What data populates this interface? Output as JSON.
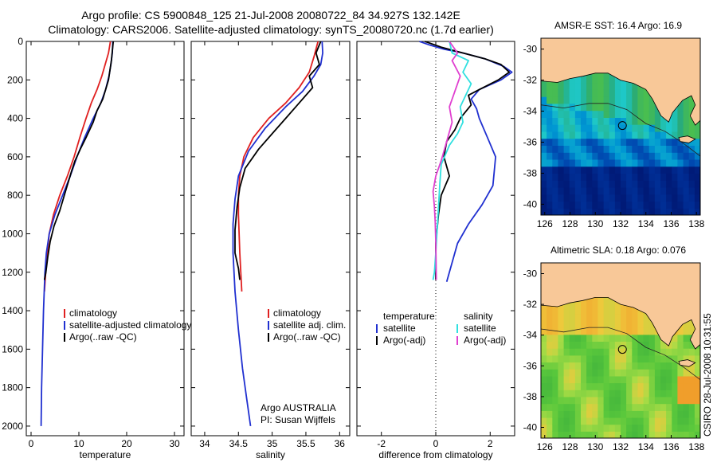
{
  "header": {
    "title_line1": "Argo profile: CS 5900848_125 21-Jul-2008 20080722_84 34.927S 132.142E",
    "title_line2": "Climatology: CARS2006. Satellite-adjusted climatology: synTS_20080720.nc (1.7d earlier)"
  },
  "credit": "CSIRO 28-Jul-2008 10:31:55",
  "colors": {
    "climatology": "#e02020",
    "satellite": "#2030d0",
    "argo": "#000000",
    "salinity_satellite": "#30e0e0",
    "salinity_argo": "#e040d0"
  },
  "chart_data": [
    {
      "id": "temperature",
      "type": "line",
      "xlabel": "temperature",
      "xlim": [
        -1,
        32
      ],
      "ylim": [
        2050,
        0
      ],
      "xticks": [
        0,
        10,
        20,
        30
      ],
      "yticks": [
        0,
        200,
        400,
        600,
        800,
        1000,
        1200,
        1400,
        1600,
        1800,
        2000
      ],
      "legend": [
        "climatology",
        "satellite-adjusted climatology",
        "Argo(..raw -QC)"
      ],
      "series": [
        {
          "name": "climatology",
          "color": "climatology",
          "x": [
            16.6,
            16.2,
            15.5,
            14.8,
            13.8,
            12.6,
            11.5,
            10.2,
            9.0,
            7.6,
            6.0,
            4.7,
            3.8,
            3.2,
            2.8
          ],
          "y": [
            0,
            60,
            120,
            180,
            250,
            320,
            400,
            500,
            600,
            700,
            800,
            900,
            1000,
            1150,
            1300
          ]
        },
        {
          "name": "satellite-adjusted climatology",
          "color": "satellite",
          "x": [
            17.1,
            17.0,
            16.7,
            16.3,
            15.6,
            14.6,
            13.0,
            11.2,
            9.6,
            8.2,
            6.6,
            5.0,
            3.8,
            3.2,
            2.9,
            2.6,
            2.4,
            2.2,
            2.1
          ],
          "y": [
            0,
            60,
            120,
            180,
            250,
            320,
            400,
            500,
            600,
            700,
            800,
            900,
            1000,
            1100,
            1200,
            1400,
            1600,
            1800,
            2000
          ]
        },
        {
          "name": "Argo(..raw -QC)",
          "color": "argo",
          "x": [
            17.2,
            17.0,
            16.8,
            16.5,
            16.2,
            15.6,
            15.0,
            13.8,
            13.0,
            11.5,
            10.3,
            9.2,
            8.4,
            7.2,
            6.0,
            4.8,
            4.0,
            3.5,
            3.1,
            2.8
          ],
          "y": [
            0,
            50,
            100,
            150,
            200,
            250,
            300,
            360,
            420,
            500,
            560,
            620,
            680,
            780,
            880,
            960,
            1040,
            1120,
            1200,
            1240
          ]
        }
      ]
    },
    {
      "id": "salinity",
      "type": "line",
      "xlabel": "salinity",
      "xlim": [
        33.8,
        36.15
      ],
      "ylim": [
        2050,
        0
      ],
      "xticks": [
        34,
        34.5,
        35,
        35.5,
        36
      ],
      "yticks": [],
      "legend": [
        "climatology",
        "satellite adj. clim.",
        "Argo(..raw -QC)"
      ],
      "annotation": [
        "Argo AUSTRALIA",
        "PI: Susan Wijffels"
      ],
      "series": [
        {
          "name": "climatology",
          "color": "climatology",
          "x": [
            35.68,
            35.62,
            35.55,
            35.4,
            35.2,
            34.95,
            34.72,
            34.58,
            34.52,
            34.5,
            34.5,
            34.52,
            34.55
          ],
          "y": [
            0,
            80,
            160,
            240,
            320,
            400,
            500,
            600,
            700,
            800,
            900,
            1100,
            1300
          ]
        },
        {
          "name": "satellite adj. clim.",
          "color": "satellite",
          "x": [
            35.74,
            35.75,
            35.72,
            35.62,
            35.45,
            35.2,
            34.9,
            34.65,
            34.5,
            34.45,
            34.42,
            34.42,
            34.45,
            34.5,
            34.56,
            34.62,
            34.68
          ],
          "y": [
            0,
            60,
            120,
            180,
            260,
            340,
            450,
            570,
            700,
            820,
            950,
            1100,
            1300,
            1500,
            1700,
            1850,
            2000
          ]
        },
        {
          "name": "Argo(..raw -QC)",
          "color": "argo",
          "x": [
            35.72,
            35.65,
            35.7,
            35.55,
            35.6,
            35.4,
            35.2,
            35.0,
            34.8,
            34.6,
            34.52,
            34.48,
            34.45,
            34.45,
            34.5,
            34.52
          ],
          "y": [
            0,
            60,
            120,
            180,
            240,
            320,
            400,
            480,
            560,
            660,
            760,
            860,
            980,
            1100,
            1180,
            1240
          ]
        }
      ]
    },
    {
      "id": "difference",
      "type": "line",
      "xlabel": "difference from climatology",
      "xlim": [
        -2.9,
        2.9
      ],
      "ylim": [
        2050,
        0
      ],
      "xticks": [
        -2,
        0,
        2
      ],
      "yticks": [],
      "legend": [
        "temperature",
        "satellite",
        "Argo(-adj)",
        "salinity",
        "satellite",
        "Argo(-adj)"
      ],
      "series": [
        {
          "name": "temperature satellite",
          "color": "satellite",
          "x": [
            -0.6,
            -0.2,
            0.3,
            1.0,
            1.8,
            2.5,
            2.8,
            2.4,
            1.6,
            1.3,
            1.5,
            1.6,
            1.9,
            2.2,
            2.1,
            1.7,
            1.2,
            0.8,
            0.4
          ],
          "y": [
            0,
            20,
            40,
            60,
            90,
            130,
            160,
            200,
            250,
            300,
            350,
            400,
            500,
            600,
            750,
            850,
            950,
            1050,
            1250
          ]
        },
        {
          "name": "temperature Argo(-adj)",
          "color": "argo",
          "x": [
            -0.4,
            0.2,
            1.0,
            1.8,
            2.4,
            2.7,
            2.3,
            1.6,
            1.2,
            1.3,
            0.9,
            0.7,
            0.4,
            0.3,
            0.5,
            0.2,
            0.1,
            0.0,
            0.0
          ],
          "y": [
            0,
            30,
            60,
            90,
            120,
            160,
            200,
            250,
            280,
            330,
            400,
            460,
            520,
            600,
            700,
            800,
            900,
            1050,
            1240
          ]
        },
        {
          "name": "salinity satellite",
          "color": "salinity_satellite",
          "x": [
            0.5,
            0.6,
            1.2,
            1.0,
            1.3,
            1.1,
            0.9,
            1.0,
            0.8,
            0.5,
            0.2,
            0.15,
            0.1,
            0.05,
            0.0,
            -0.05,
            -0.1
          ],
          "y": [
            0,
            60,
            100,
            160,
            220,
            280,
            340,
            420,
            480,
            540,
            640,
            740,
            860,
            980,
            1100,
            1200,
            1240
          ]
        },
        {
          "name": "salinity Argo(-adj)",
          "color": "salinity_argo",
          "x": [
            0.5,
            0.8,
            0.6,
            0.9,
            0.7,
            0.5,
            0.6,
            0.4,
            0.2,
            0.0,
            -0.1,
            -0.05,
            -0.02,
            0.0,
            0.02
          ],
          "y": [
            0,
            60,
            100,
            180,
            260,
            340,
            420,
            520,
            620,
            700,
            780,
            860,
            940,
            1040,
            1240
          ]
        }
      ]
    },
    {
      "id": "sst-map",
      "type": "heatmap",
      "title": "AMSR-E SST: 16.4 Argo: 16.9",
      "xlim": [
        125.7,
        138.3
      ],
      "ylim": [
        -40.7,
        -29.3
      ],
      "xticks": [
        126,
        128,
        130,
        132,
        134,
        136,
        138
      ],
      "yticks": [
        -30,
        -32,
        -34,
        -36,
        -38,
        -40
      ],
      "marker": {
        "lon": 132.142,
        "lat": -34.927
      }
    },
    {
      "id": "sla-map",
      "type": "heatmap",
      "title": "Altimetric SLA: 0.18 Argo: 0.076",
      "xlim": [
        125.7,
        138.3
      ],
      "ylim": [
        -40.7,
        -29.3
      ],
      "xticks": [
        126,
        128,
        130,
        132,
        134,
        136,
        138
      ],
      "yticks": [
        -30,
        -32,
        -34,
        -36,
        -38,
        -40
      ],
      "marker": {
        "lon": 132.142,
        "lat": -34.927
      }
    }
  ]
}
